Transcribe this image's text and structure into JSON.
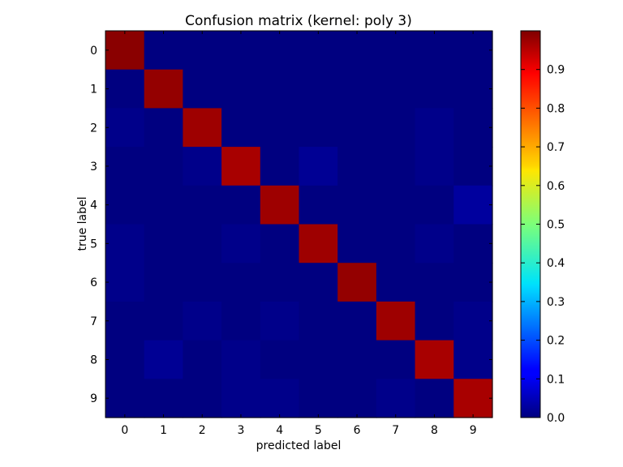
{
  "chart_data": {
    "type": "heatmap",
    "title": "Confusion matrix (kernel: poly 3)",
    "xlabel": "predicted label",
    "ylabel": "true label",
    "x_categories": [
      "0",
      "1",
      "2",
      "3",
      "4",
      "5",
      "6",
      "7",
      "8",
      "9"
    ],
    "y_categories": [
      "0",
      "1",
      "2",
      "3",
      "4",
      "5",
      "6",
      "7",
      "8",
      "9"
    ],
    "colorscale": "jet",
    "colorbar": {
      "range": [
        0.0,
        1.0
      ],
      "ticks": [
        "0.0",
        "0.1",
        "0.2",
        "0.3",
        "0.4",
        "0.5",
        "0.6",
        "0.7",
        "0.8",
        "0.9"
      ]
    },
    "values": [
      [
        0.99,
        0.0,
        0.0,
        0.0,
        0.0,
        0.0,
        0.0,
        0.0,
        0.0,
        0.0
      ],
      [
        0.0,
        0.98,
        0.0,
        0.0,
        0.0,
        0.0,
        0.0,
        0.0,
        0.0,
        0.0
      ],
      [
        0.01,
        0.0,
        0.97,
        0.0,
        0.0,
        0.0,
        0.0,
        0.0,
        0.01,
        0.0
      ],
      [
        0.0,
        0.0,
        0.01,
        0.96,
        0.0,
        0.02,
        0.0,
        0.0,
        0.01,
        0.0
      ],
      [
        0.0,
        0.0,
        0.0,
        0.0,
        0.97,
        0.0,
        0.0,
        0.0,
        0.0,
        0.03
      ],
      [
        0.01,
        0.0,
        0.0,
        0.01,
        0.0,
        0.97,
        0.0,
        0.0,
        0.01,
        0.0
      ],
      [
        0.01,
        0.0,
        0.0,
        0.0,
        0.0,
        0.0,
        0.98,
        0.0,
        0.0,
        0.0
      ],
      [
        0.0,
        0.0,
        0.01,
        0.0,
        0.01,
        0.0,
        0.0,
        0.97,
        0.0,
        0.01
      ],
      [
        0.0,
        0.02,
        0.0,
        0.01,
        0.0,
        0.0,
        0.0,
        0.0,
        0.96,
        0.01
      ],
      [
        0.0,
        0.0,
        0.0,
        0.01,
        0.01,
        0.0,
        0.0,
        0.01,
        0.0,
        0.96
      ]
    ]
  }
}
